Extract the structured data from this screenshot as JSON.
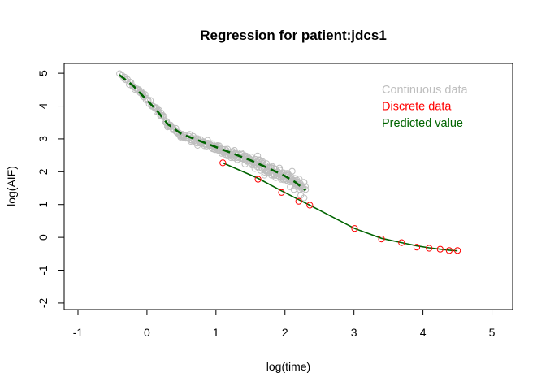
{
  "chart_data": {
    "type": "scatter",
    "title": "Regression for patient:jdcs1",
    "xlabel": "log(time)",
    "ylabel": "log(AIF)",
    "xlim": [
      -1.2,
      5.3
    ],
    "ylim": [
      -2.2,
      5.3
    ],
    "x_ticks": [
      -1,
      0,
      1,
      2,
      3,
      4,
      5
    ],
    "y_ticks": [
      -2,
      -1,
      0,
      1,
      2,
      3,
      4,
      5
    ],
    "grid": false,
    "legend_position": "top-right",
    "legend": [
      {
        "label": "Continuous data",
        "color": "#bebebe"
      },
      {
        "label": "Discrete data",
        "color": "#ff0000"
      },
      {
        "label": "Predicted value",
        "color": "#006400"
      }
    ],
    "continuous_curve": [
      [
        -0.4,
        4.95
      ],
      [
        -0.3,
        4.8
      ],
      [
        -0.2,
        4.62
      ],
      [
        -0.1,
        4.43
      ],
      [
        0.0,
        4.2
      ],
      [
        0.1,
        4.0
      ],
      [
        0.2,
        3.75
      ],
      [
        0.3,
        3.45
      ],
      [
        0.4,
        3.25
      ],
      [
        0.5,
        3.13
      ],
      [
        0.6,
        3.02
      ],
      [
        0.7,
        2.95
      ],
      [
        0.8,
        2.88
      ],
      [
        0.9,
        2.8
      ],
      [
        1.0,
        2.72
      ],
      [
        1.1,
        2.65
      ],
      [
        1.2,
        2.58
      ],
      [
        1.3,
        2.5
      ],
      [
        1.4,
        2.42
      ],
      [
        1.5,
        2.33
      ],
      [
        1.6,
        2.25
      ],
      [
        1.7,
        2.15
      ],
      [
        1.8,
        2.05
      ],
      [
        1.9,
        1.95
      ],
      [
        2.0,
        1.85
      ],
      [
        2.1,
        1.73
      ],
      [
        2.2,
        1.6
      ],
      [
        2.3,
        1.45
      ]
    ],
    "predicted_continuous": [
      [
        -0.4,
        4.95
      ],
      [
        -0.2,
        4.62
      ],
      [
        0.0,
        4.18
      ],
      [
        0.15,
        3.85
      ],
      [
        0.3,
        3.45
      ],
      [
        0.5,
        3.15
      ],
      [
        0.75,
        2.95
      ],
      [
        1.0,
        2.75
      ],
      [
        1.25,
        2.55
      ],
      [
        1.5,
        2.35
      ],
      [
        1.75,
        2.12
      ],
      [
        2.0,
        1.87
      ],
      [
        2.15,
        1.68
      ],
      [
        2.3,
        1.43
      ]
    ],
    "discrete_data": [
      [
        1.1,
        2.27
      ],
      [
        1.61,
        1.77
      ],
      [
        1.95,
        1.37
      ],
      [
        2.2,
        1.1
      ],
      [
        2.36,
        0.98
      ],
      [
        3.01,
        0.27
      ],
      [
        3.4,
        -0.05
      ],
      [
        3.69,
        -0.16
      ],
      [
        3.91,
        -0.3
      ],
      [
        4.09,
        -0.33
      ],
      [
        4.25,
        -0.36
      ],
      [
        4.38,
        -0.4
      ],
      [
        4.5,
        -0.4
      ]
    ],
    "predicted_discrete": [
      [
        1.1,
        2.27
      ],
      [
        1.61,
        1.8
      ],
      [
        1.95,
        1.42
      ],
      [
        2.2,
        1.15
      ],
      [
        2.36,
        0.98
      ],
      [
        3.01,
        0.27
      ],
      [
        3.4,
        -0.03
      ],
      [
        3.69,
        -0.16
      ],
      [
        3.91,
        -0.26
      ],
      [
        4.09,
        -0.32
      ],
      [
        4.25,
        -0.36
      ],
      [
        4.38,
        -0.39
      ],
      [
        4.5,
        -0.41
      ]
    ]
  }
}
